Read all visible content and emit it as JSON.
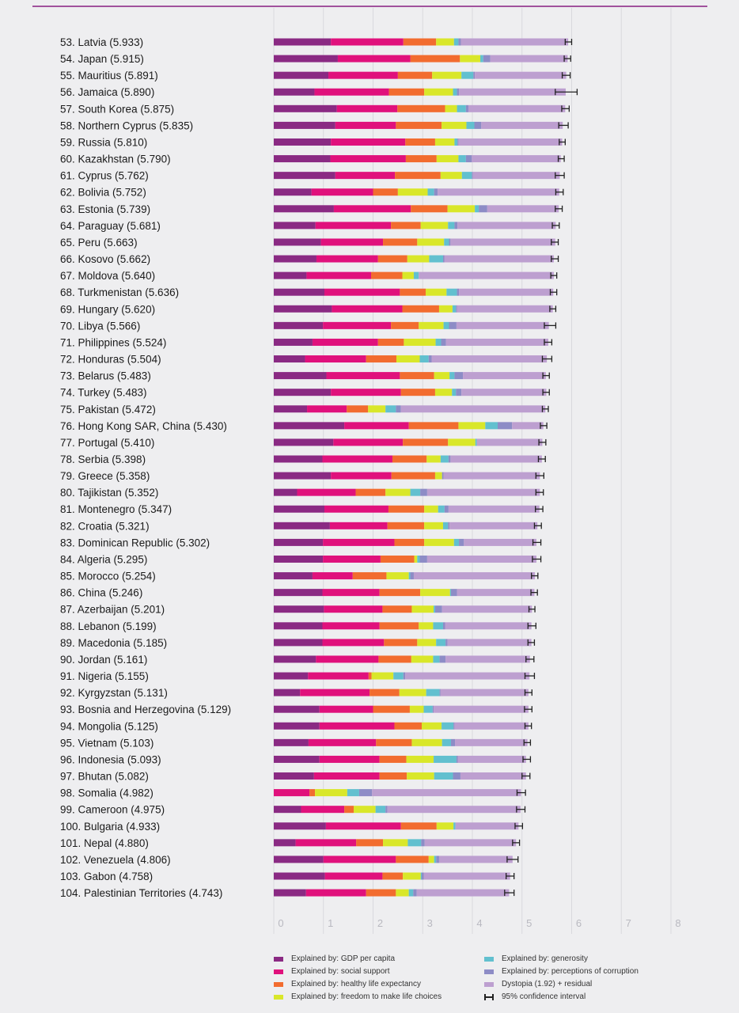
{
  "chart_data": {
    "type": "bar",
    "stacked": true,
    "orientation": "horizontal",
    "xlim": [
      0,
      8
    ],
    "xticks": [
      "0",
      "1",
      "2",
      "3",
      "4",
      "5",
      "6",
      "7",
      "8"
    ],
    "grid": true,
    "legend_position": "bottom",
    "colors": {
      "gdp": "#8a2a83",
      "social": "#e0117c",
      "health": "#f26c2f",
      "freedom": "#d9e72a",
      "generosity": "#62c0cf",
      "corruption": "#8d8cc6",
      "dystopia": "#bd9fd0",
      "ci": "#222222"
    },
    "legend": [
      {
        "key": "gdp",
        "label": "Explained by: GDP per capita"
      },
      {
        "key": "generosity",
        "label": "Explained by: generosity"
      },
      {
        "key": "social",
        "label": "Explained by: social support"
      },
      {
        "key": "corruption",
        "label": "Explained by: perceptions of corruption"
      },
      {
        "key": "health",
        "label": "Explained by: healthy life expectancy"
      },
      {
        "key": "dystopia",
        "label": "Dystopia (1.92) + residual"
      },
      {
        "key": "freedom",
        "label": "Explained by: freedom to make life choices"
      },
      {
        "key": "ci",
        "label": "95% confidence interval"
      }
    ],
    "series_order": [
      "gdp",
      "social",
      "health",
      "freedom",
      "generosity",
      "corruption",
      "dystopia"
    ],
    "rows": [
      {
        "label": "53.  Latvia (5.933)",
        "score": 5.933,
        "values": [
          1.15,
          1.46,
          0.66,
          0.36,
          0.09,
          0.05,
          2.16
        ],
        "ci": [
          5.87,
          6.0
        ]
      },
      {
        "label": "54.  Japan (5.915)",
        "score": 5.915,
        "values": [
          1.29,
          1.46,
          1.0,
          0.41,
          0.06,
          0.14,
          1.56
        ],
        "ci": [
          5.85,
          5.98
        ]
      },
      {
        "label": "55.  Mauritius (5.891)",
        "score": 5.891,
        "values": [
          1.1,
          1.4,
          0.69,
          0.59,
          0.24,
          0.03,
          1.84
        ],
        "ci": [
          5.81,
          5.97
        ]
      },
      {
        "label": "56.  Jamaica (5.890)",
        "score": 5.89,
        "values": [
          0.82,
          1.5,
          0.71,
          0.58,
          0.08,
          0.04,
          2.15
        ],
        "ci": [
          5.67,
          6.11
        ]
      },
      {
        "label": "57.  South Korea (5.875)",
        "score": 5.875,
        "values": [
          1.27,
          1.22,
          0.96,
          0.24,
          0.18,
          0.05,
          1.95
        ],
        "ci": [
          5.8,
          5.95
        ]
      },
      {
        "label": "58.  Northern Cyprus (5.835)",
        "score": 5.835,
        "values": [
          1.24,
          1.22,
          0.92,
          0.5,
          0.16,
          0.14,
          1.64
        ],
        "ci": [
          5.74,
          5.93
        ]
      },
      {
        "label": "59.  Russia (5.810)",
        "score": 5.81,
        "values": [
          1.15,
          1.5,
          0.6,
          0.39,
          0.06,
          0.02,
          2.09
        ],
        "ci": [
          5.75,
          5.87
        ]
      },
      {
        "label": "60.  Kazakhstan (5.790)",
        "score": 5.79,
        "values": [
          1.14,
          1.52,
          0.62,
          0.44,
          0.15,
          0.12,
          1.79
        ],
        "ci": [
          5.73,
          5.85
        ]
      },
      {
        "label": "61.  Cyprus (5.762)",
        "score": 5.762,
        "values": [
          1.24,
          1.2,
          0.92,
          0.43,
          0.2,
          0.02,
          1.75
        ],
        "ci": [
          5.67,
          5.85
        ]
      },
      {
        "label": "62.  Bolivia (5.752)",
        "score": 5.752,
        "values": [
          0.76,
          1.24,
          0.5,
          0.6,
          0.13,
          0.07,
          2.45
        ],
        "ci": [
          5.68,
          5.83
        ]
      },
      {
        "label": "63.  Estonia (5.739)",
        "score": 5.739,
        "values": [
          1.21,
          1.55,
          0.74,
          0.55,
          0.08,
          0.17,
          1.44
        ],
        "ci": [
          5.67,
          5.81
        ]
      },
      {
        "label": "64.  Paraguay (5.681)",
        "score": 5.681,
        "values": [
          0.84,
          1.52,
          0.6,
          0.55,
          0.13,
          0.06,
          1.98
        ],
        "ci": [
          5.61,
          5.75
        ]
      },
      {
        "label": "65.  Peru (5.663)",
        "score": 5.663,
        "values": [
          0.95,
          1.25,
          0.69,
          0.54,
          0.1,
          0.03,
          2.11
        ],
        "ci": [
          5.59,
          5.73
        ]
      },
      {
        "label": "66.  Kosovo (5.662)",
        "score": 5.662,
        "values": [
          0.86,
          1.24,
          0.59,
          0.44,
          0.28,
          0.03,
          2.2
        ],
        "ci": [
          5.59,
          5.73
        ]
      },
      {
        "label": "67.  Moldova (5.640)",
        "score": 5.64,
        "values": [
          0.66,
          1.3,
          0.63,
          0.23,
          0.1,
          0.0,
          2.72
        ],
        "ci": [
          5.58,
          5.7
        ]
      },
      {
        "label": "68.  Turkmenistan (5.636)",
        "score": 5.636,
        "values": [
          1.02,
          1.52,
          0.52,
          0.42,
          0.21,
          0.04,
          1.9
        ],
        "ci": [
          5.57,
          5.7
        ]
      },
      {
        "label": "69.  Hungary (5.620)",
        "score": 5.62,
        "values": [
          1.17,
          1.42,
          0.74,
          0.27,
          0.07,
          0.02,
          1.93
        ],
        "ci": [
          5.56,
          5.68
        ]
      },
      {
        "label": "70.  Libya (5.566)",
        "score": 5.566,
        "values": [
          0.99,
          1.37,
          0.56,
          0.5,
          0.11,
          0.15,
          1.86
        ],
        "ci": [
          5.45,
          5.68
        ]
      },
      {
        "label": "71.  Philippines (5.524)",
        "score": 5.524,
        "values": [
          0.78,
          1.32,
          0.52,
          0.64,
          0.11,
          0.1,
          2.06
        ],
        "ci": [
          5.45,
          5.6
        ]
      },
      {
        "label": "72.  Honduras (5.504)",
        "score": 5.504,
        "values": [
          0.63,
          1.23,
          0.61,
          0.47,
          0.18,
          0.06,
          2.32
        ],
        "ci": [
          5.41,
          5.6
        ]
      },
      {
        "label": "73.  Belarus (5.483)",
        "score": 5.483,
        "values": [
          1.06,
          1.48,
          0.69,
          0.31,
          0.1,
          0.17,
          1.67
        ],
        "ci": [
          5.42,
          5.55
        ]
      },
      {
        "label": "74.  Turkey (5.483)",
        "score": 5.483,
        "values": [
          1.15,
          1.41,
          0.69,
          0.34,
          0.08,
          0.11,
          1.71
        ],
        "ci": [
          5.42,
          5.55
        ]
      },
      {
        "label": "75.  Pakistan (5.472)",
        "score": 5.472,
        "values": [
          0.67,
          0.8,
          0.43,
          0.35,
          0.21,
          0.1,
          2.91
        ],
        "ci": [
          5.41,
          5.53
        ]
      },
      {
        "label": "76.  Hong Kong SAR, China (5.430)",
        "score": 5.43,
        "values": [
          1.42,
          1.3,
          1.0,
          0.54,
          0.25,
          0.29,
          0.63
        ],
        "ci": [
          5.37,
          5.5
        ]
      },
      {
        "label": "77.  Portugal (5.410)",
        "score": 5.41,
        "values": [
          1.2,
          1.4,
          0.91,
          0.55,
          0.03,
          0.0,
          1.32
        ],
        "ci": [
          5.34,
          5.48
        ]
      },
      {
        "label": "78.  Serbia (5.398)",
        "score": 5.398,
        "values": [
          0.98,
          1.41,
          0.69,
          0.28,
          0.16,
          0.04,
          1.84
        ],
        "ci": [
          5.33,
          5.47
        ]
      },
      {
        "label": "79.  Greece (5.358)",
        "score": 5.358,
        "values": [
          1.15,
          1.22,
          0.88,
          0.14,
          0.0,
          0.03,
          1.94
        ],
        "ci": [
          5.28,
          5.44
        ]
      },
      {
        "label": "80.  Tajikistan (5.352)",
        "score": 5.352,
        "values": [
          0.47,
          1.18,
          0.6,
          0.5,
          0.2,
          0.14,
          2.27
        ],
        "ci": [
          5.28,
          5.43
        ]
      },
      {
        "label": "81.  Montenegro (5.347)",
        "score": 5.347,
        "values": [
          1.02,
          1.29,
          0.72,
          0.28,
          0.13,
          0.08,
          1.83
        ],
        "ci": [
          5.27,
          5.42
        ]
      },
      {
        "label": "82.  Croatia (5.321)",
        "score": 5.321,
        "values": [
          1.13,
          1.16,
          0.74,
          0.38,
          0.1,
          0.03,
          1.77
        ],
        "ci": [
          5.25,
          5.39
        ]
      },
      {
        "label": "83.  Dominican Republic (5.302)",
        "score": 5.302,
        "values": [
          0.99,
          1.44,
          0.6,
          0.6,
          0.1,
          0.1,
          1.46
        ],
        "ci": [
          5.22,
          5.38
        ]
      },
      {
        "label": "84.  Algeria (5.295)",
        "score": 5.295,
        "values": [
          0.99,
          1.16,
          0.68,
          0.06,
          0.05,
          0.15,
          2.2
        ],
        "ci": [
          5.21,
          5.38
        ]
      },
      {
        "label": "85.  Morocco (5.254)",
        "score": 5.254,
        "values": [
          0.78,
          0.81,
          0.68,
          0.45,
          0.03,
          0.07,
          2.44
        ],
        "ci": [
          5.19,
          5.32
        ]
      },
      {
        "label": "86.  China (5.246)",
        "score": 5.246,
        "values": [
          0.98,
          1.15,
          0.82,
          0.6,
          0.02,
          0.12,
          1.56
        ],
        "ci": [
          5.18,
          5.31
        ]
      },
      {
        "label": "87.  Azerbaijan (5.201)",
        "score": 5.201,
        "values": [
          1.01,
          1.18,
          0.59,
          0.44,
          0.03,
          0.14,
          1.81
        ],
        "ci": [
          5.14,
          5.26
        ]
      },
      {
        "label": "88.  Lebanon (5.199)",
        "score": 5.199,
        "values": [
          0.98,
          1.15,
          0.79,
          0.29,
          0.2,
          0.04,
          1.74
        ],
        "ci": [
          5.12,
          5.28
        ]
      },
      {
        "label": "89.  Macedonia (5.185)",
        "score": 5.185,
        "values": [
          0.98,
          1.24,
          0.67,
          0.38,
          0.19,
          0.04,
          1.69
        ],
        "ci": [
          5.12,
          5.25
        ]
      },
      {
        "label": "90.  Jordan (5.161)",
        "score": 5.161,
        "values": [
          0.85,
          1.26,
          0.66,
          0.44,
          0.13,
          0.12,
          1.7
        ],
        "ci": [
          5.08,
          5.24
        ]
      },
      {
        "label": "91.  Nigeria (5.155)",
        "score": 5.155,
        "values": [
          0.69,
          1.22,
          0.06,
          0.44,
          0.2,
          0.04,
          2.5
        ],
        "ci": [
          5.06,
          5.25
        ]
      },
      {
        "label": "92.  Kyrgyzstan (5.131)",
        "score": 5.131,
        "values": [
          0.53,
          1.4,
          0.6,
          0.54,
          0.27,
          0.02,
          1.77
        ],
        "ci": [
          5.06,
          5.2
        ]
      },
      {
        "label": "93.  Bosnia and Herzegovina (5.129)",
        "score": 5.129,
        "values": [
          0.92,
          1.08,
          0.74,
          0.28,
          0.18,
          0.02,
          1.91
        ],
        "ci": [
          5.05,
          5.2
        ]
      },
      {
        "label": "94.  Mongolia (5.125)",
        "score": 5.125,
        "values": [
          0.92,
          1.51,
          0.55,
          0.4,
          0.24,
          0.02,
          1.49
        ],
        "ci": [
          5.06,
          5.19
        ]
      },
      {
        "label": "95.  Vietnam (5.103)",
        "score": 5.103,
        "values": [
          0.7,
          1.36,
          0.72,
          0.61,
          0.18,
          0.08,
          1.46
        ],
        "ci": [
          5.04,
          5.17
        ]
      },
      {
        "label": "96.  Indonesia (5.093)",
        "score": 5.093,
        "values": [
          0.92,
          1.21,
          0.54,
          0.55,
          0.46,
          0.03,
          1.37
        ],
        "ci": [
          5.02,
          5.17
        ]
      },
      {
        "label": "97.  Bhutan (5.082)",
        "score": 5.082,
        "values": [
          0.81,
          1.32,
          0.55,
          0.55,
          0.38,
          0.15,
          1.32
        ],
        "ci": [
          5.0,
          5.16
        ]
      },
      {
        "label": "98.  Somalia (4.982)",
        "score": 4.982,
        "values": [
          0.0,
          0.72,
          0.11,
          0.65,
          0.24,
          0.26,
          3.0
        ],
        "ci": [
          4.9,
          5.07
        ]
      },
      {
        "label": "99.  Cameroon (4.975)",
        "score": 4.975,
        "values": [
          0.55,
          0.87,
          0.19,
          0.44,
          0.2,
          0.04,
          2.68
        ],
        "ci": [
          4.89,
          5.06
        ]
      },
      {
        "label": "100.  Bulgaria (4.933)",
        "score": 4.933,
        "values": [
          1.05,
          1.51,
          0.72,
          0.34,
          0.04,
          0.0,
          1.27
        ],
        "ci": [
          4.86,
          5.01
        ]
      },
      {
        "label": "101.  Nepal (4.880)",
        "score": 4.88,
        "values": [
          0.44,
          1.22,
          0.54,
          0.5,
          0.27,
          0.07,
          1.84
        ],
        "ci": [
          4.81,
          4.95
        ]
      },
      {
        "label": "102.  Venezuela (4.806)",
        "score": 4.806,
        "values": [
          1.0,
          1.46,
          0.66,
          0.11,
          0.04,
          0.06,
          1.48
        ],
        "ci": [
          4.7,
          4.92
        ]
      },
      {
        "label": "103.  Gabon (4.758)",
        "score": 4.758,
        "values": [
          1.03,
          1.16,
          0.41,
          0.36,
          0.02,
          0.04,
          1.74
        ],
        "ci": [
          4.68,
          4.84
        ]
      },
      {
        "label": "104.  Palestinian Territories (4.743)",
        "score": 4.743,
        "values": [
          0.65,
          1.21,
          0.6,
          0.26,
          0.09,
          0.07,
          1.86
        ],
        "ci": [
          4.65,
          4.84
        ]
      }
    ]
  }
}
